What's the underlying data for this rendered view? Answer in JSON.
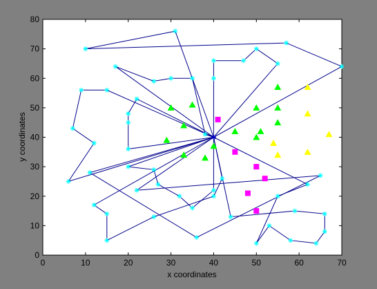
{
  "chart_data": {
    "type": "scatter",
    "xlabel": "x coordinates",
    "ylabel": "y coordinates",
    "xlim": [
      0,
      70
    ],
    "ylim": [
      0,
      80
    ],
    "xticks": [
      0,
      10,
      20,
      30,
      40,
      50,
      60,
      70
    ],
    "yticks": [
      0,
      10,
      20,
      30,
      40,
      50,
      60,
      70,
      80
    ],
    "grid": false,
    "legend": "none",
    "colors": {
      "figure_background": "#808080",
      "axes_background": "#ffffff",
      "route_line": "#00008b",
      "customer_marker": "#00ffff",
      "depot_marker": "#0000cd",
      "group_green": "#00ff00",
      "group_magenta": "#ff00ff",
      "group_yellow": "#ffff00"
    },
    "depot": [
      40,
      40
    ],
    "routes": [
      [
        [
          40,
          40
        ],
        [
          31,
          76
        ],
        [
          10,
          70
        ],
        [
          57,
          72
        ],
        [
          70,
          64
        ],
        [
          40,
          40
        ]
      ],
      [
        [
          40,
          40
        ],
        [
          17,
          64
        ],
        [
          26,
          59
        ],
        [
          30,
          60
        ],
        [
          35,
          60
        ],
        [
          38,
          41
        ],
        [
          40,
          40
        ]
      ],
      [
        [
          40,
          40
        ],
        [
          40,
          60
        ],
        [
          40,
          66
        ],
        [
          47,
          66
        ],
        [
          50,
          70
        ],
        [
          55,
          65
        ],
        [
          40,
          40
        ]
      ],
      [
        [
          40,
          40
        ],
        [
          22,
          53
        ],
        [
          20,
          48
        ],
        [
          20,
          45
        ],
        [
          20,
          36
        ],
        [
          40,
          40
        ]
      ],
      [
        [
          40,
          40
        ],
        [
          15,
          56
        ],
        [
          9,
          56
        ],
        [
          7,
          43
        ],
        [
          12,
          38
        ],
        [
          6,
          25
        ],
        [
          40,
          40
        ]
      ],
      [
        [
          40,
          40
        ],
        [
          20,
          30
        ],
        [
          26,
          29
        ],
        [
          27,
          24
        ],
        [
          32,
          20
        ],
        [
          35,
          16
        ],
        [
          40,
          22
        ],
        [
          40,
          40
        ]
      ],
      [
        [
          40,
          40
        ],
        [
          42,
          26
        ],
        [
          40,
          20
        ],
        [
          26,
          13
        ],
        [
          15,
          5
        ],
        [
          15,
          14
        ],
        [
          12,
          17
        ],
        [
          40,
          40
        ]
      ],
      [
        [
          40,
          40
        ],
        [
          11,
          28
        ],
        [
          36,
          6
        ],
        [
          65,
          27
        ],
        [
          22,
          22
        ],
        [
          40,
          40
        ]
      ],
      [
        [
          40,
          40
        ],
        [
          62,
          24
        ],
        [
          55,
          20
        ],
        [
          50,
          4
        ],
        [
          53,
          10
        ],
        [
          58,
          5
        ],
        [
          64,
          4
        ],
        [
          66,
          8
        ],
        [
          66,
          14
        ],
        [
          59,
          15
        ],
        [
          44,
          13
        ],
        [
          40,
          40
        ]
      ]
    ],
    "group_green": {
      "marker": "triangle",
      "points": [
        [
          30,
          50
        ],
        [
          35,
          51
        ],
        [
          33,
          44
        ],
        [
          29,
          39
        ],
        [
          33,
          34
        ],
        [
          38,
          33
        ],
        [
          40,
          37
        ],
        [
          45,
          42
        ],
        [
          50,
          50
        ],
        [
          55,
          57
        ],
        [
          55,
          50
        ],
        [
          55,
          45
        ],
        [
          51,
          42
        ],
        [
          50,
          40
        ]
      ]
    },
    "group_magenta": {
      "marker": "square",
      "points": [
        [
          41,
          46
        ],
        [
          45,
          35
        ],
        [
          50,
          30
        ],
        [
          52,
          26
        ],
        [
          48,
          21
        ],
        [
          50,
          15
        ]
      ]
    },
    "group_yellow": {
      "marker": "triangle",
      "points": [
        [
          54,
          38
        ],
        [
          55,
          34
        ],
        [
          62,
          35
        ],
        [
          67,
          41
        ],
        [
          62,
          48
        ],
        [
          62,
          57
        ]
      ]
    }
  }
}
